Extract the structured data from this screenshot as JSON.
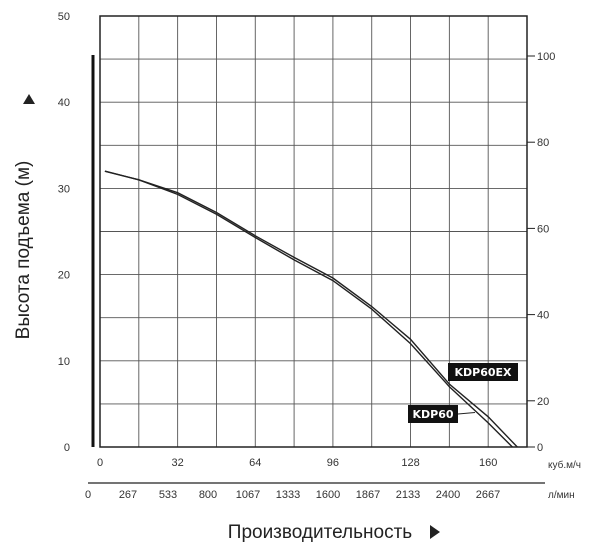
{
  "chart_data": {
    "type": "line",
    "ylabel": "Высота подъема (м)",
    "xlabel": "Производительность",
    "x_unit_top": "куб.м/ч",
    "x_unit_bottom": "л/мин",
    "xlim": [
      0,
      176
    ],
    "ylim": [
      0,
      50
    ],
    "y2lim": [
      0,
      100
    ],
    "x_ticks": [
      "0",
      "32",
      "64",
      "96",
      "128",
      "160"
    ],
    "x2_ticks": [
      "0",
      "267",
      "533",
      "800",
      "1067",
      "1333",
      "1600",
      "1867",
      "2133",
      "2400",
      "2667"
    ],
    "y_ticks": [
      "0",
      "10",
      "20",
      "30",
      "40",
      "50"
    ],
    "y2_ticks": [
      "0",
      "20",
      "40",
      "60",
      "80",
      "100"
    ],
    "grid": true,
    "series": [
      {
        "name": "KDP60EX",
        "x": [
          2,
          16,
          32,
          48,
          64,
          80,
          96,
          112,
          128,
          144,
          160,
          172
        ],
        "y": [
          32,
          31,
          29.5,
          27.2,
          24.5,
          22,
          19.6,
          16.3,
          12.5,
          7.3,
          3.5,
          0
        ]
      },
      {
        "name": "KDP60",
        "x": [
          2,
          16,
          32,
          48,
          64,
          80,
          96,
          112,
          128,
          144,
          160,
          170
        ],
        "y": [
          32,
          31,
          29.3,
          27,
          24.3,
          21.7,
          19.3,
          16,
          12,
          7,
          2.8,
          0
        ]
      }
    ]
  }
}
